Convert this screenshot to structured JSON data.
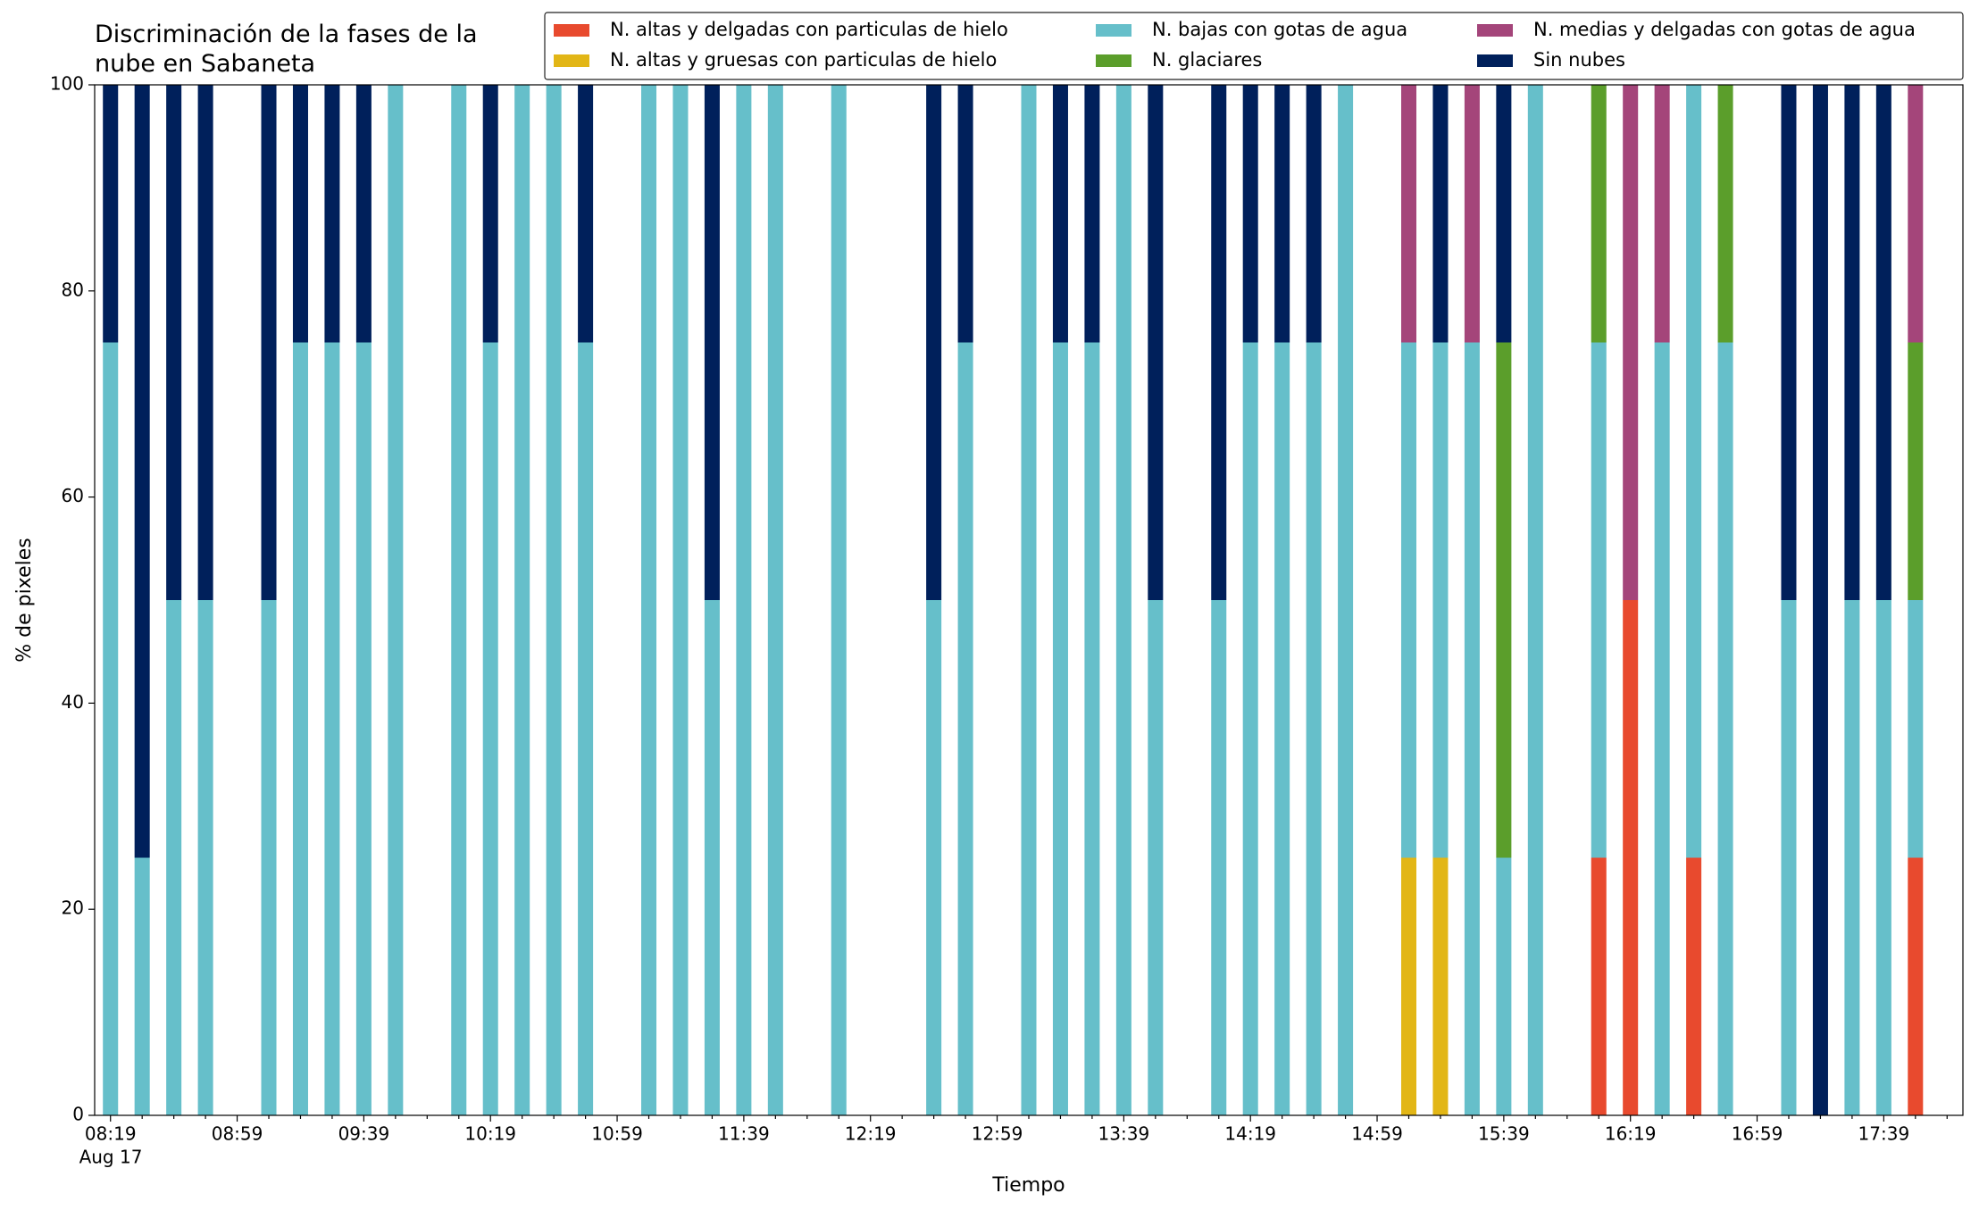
{
  "chart_data": {
    "type": "stacked-bar",
    "title": "Discriminación de la fases de la nube en Sabaneta",
    "xlabel": "Tiempo",
    "ylabel": "% de pixeles",
    "xsublabel": "Aug 17",
    "categories": [
      "08:19",
      null,
      null,
      null,
      "08:59",
      null,
      null,
      null,
      "09:39",
      null,
      null,
      null,
      "10:19",
      null,
      null,
      null,
      "10:59",
      null,
      null,
      null,
      "11:39",
      null,
      null,
      null,
      "12:19",
      null,
      null,
      null,
      "12:59",
      null,
      null,
      null,
      "13:39",
      null,
      null,
      null,
      "14:19",
      null,
      null,
      null,
      "14:59",
      null,
      null,
      null,
      "15:39",
      null,
      null,
      null,
      "16:19",
      null,
      null,
      null,
      "16:59",
      null,
      null,
      null,
      "17:39",
      null,
      null
    ],
    "ylim": [
      0,
      100
    ],
    "yticks": [
      0,
      20,
      40,
      60,
      80,
      100
    ],
    "grid": false,
    "series": [
      {
        "name": "N. altas y delgadas con particulas de hielo",
        "color": "#e84a2e",
        "values": [
          0,
          0,
          0,
          0,
          null,
          0,
          0,
          0,
          0,
          0,
          null,
          0,
          0,
          0,
          0,
          0,
          null,
          0,
          0,
          0,
          0,
          0,
          null,
          0,
          null,
          null,
          0,
          0,
          null,
          0,
          0,
          0,
          0,
          0,
          null,
          0,
          0,
          0,
          0,
          0,
          null,
          0,
          0,
          0,
          0,
          0,
          null,
          25,
          50,
          0,
          25,
          0,
          null,
          0,
          0,
          0,
          0,
          25,
          null
        ]
      },
      {
        "name": "N. altas y gruesas con particulas de hielo",
        "color": "#e2b616",
        "values": [
          0,
          0,
          0,
          0,
          null,
          0,
          0,
          0,
          0,
          0,
          null,
          0,
          0,
          0,
          0,
          0,
          null,
          0,
          0,
          0,
          0,
          0,
          null,
          0,
          null,
          null,
          0,
          0,
          null,
          0,
          0,
          0,
          0,
          0,
          null,
          0,
          0,
          0,
          0,
          0,
          null,
          25,
          25,
          0,
          0,
          0,
          null,
          0,
          0,
          0,
          0,
          0,
          null,
          0,
          0,
          0,
          0,
          0,
          null
        ]
      },
      {
        "name": "N. bajas con gotas de agua",
        "color": "#66bfca",
        "values": [
          75,
          25,
          50,
          50,
          null,
          50,
          75,
          75,
          75,
          100,
          null,
          100,
          75,
          100,
          100,
          75,
          null,
          100,
          100,
          50,
          100,
          100,
          null,
          100,
          null,
          null,
          50,
          75,
          null,
          100,
          75,
          75,
          100,
          50,
          null,
          50,
          75,
          75,
          75,
          100,
          null,
          50,
          50,
          75,
          25,
          100,
          null,
          50,
          0,
          75,
          75,
          75,
          null,
          50,
          0,
          50,
          50,
          25,
          null
        ]
      },
      {
        "name": "N. glaciares",
        "color": "#5b9e2b",
        "values": [
          0,
          0,
          0,
          0,
          null,
          0,
          0,
          0,
          0,
          0,
          null,
          0,
          0,
          0,
          0,
          0,
          null,
          0,
          0,
          0,
          0,
          0,
          null,
          0,
          null,
          null,
          0,
          0,
          null,
          0,
          0,
          0,
          0,
          0,
          null,
          0,
          0,
          0,
          0,
          0,
          null,
          0,
          0,
          0,
          50,
          0,
          null,
          25,
          0,
          0,
          0,
          25,
          null,
          0,
          0,
          0,
          0,
          25,
          null
        ]
      },
      {
        "name": "N. medias y delgadas con gotas de agua",
        "color": "#a4457a",
        "values": [
          0,
          0,
          0,
          0,
          null,
          0,
          0,
          0,
          0,
          0,
          null,
          0,
          0,
          0,
          0,
          0,
          null,
          0,
          0,
          0,
          0,
          0,
          null,
          0,
          null,
          null,
          0,
          0,
          null,
          0,
          0,
          0,
          0,
          0,
          null,
          0,
          0,
          0,
          0,
          0,
          null,
          25,
          0,
          25,
          0,
          0,
          null,
          0,
          50,
          25,
          0,
          0,
          null,
          0,
          0,
          0,
          0,
          25,
          null
        ]
      },
      {
        "name": "Sin nubes",
        "color": "#00205b",
        "values": [
          25,
          75,
          50,
          50,
          null,
          50,
          25,
          25,
          25,
          0,
          null,
          0,
          25,
          0,
          0,
          25,
          null,
          0,
          0,
          50,
          0,
          0,
          null,
          0,
          null,
          null,
          50,
          25,
          null,
          0,
          25,
          25,
          0,
          50,
          null,
          50,
          25,
          25,
          25,
          0,
          null,
          0,
          25,
          0,
          25,
          0,
          null,
          0,
          0,
          0,
          0,
          0,
          null,
          50,
          100,
          50,
          50,
          0,
          null
        ]
      }
    ]
  }
}
